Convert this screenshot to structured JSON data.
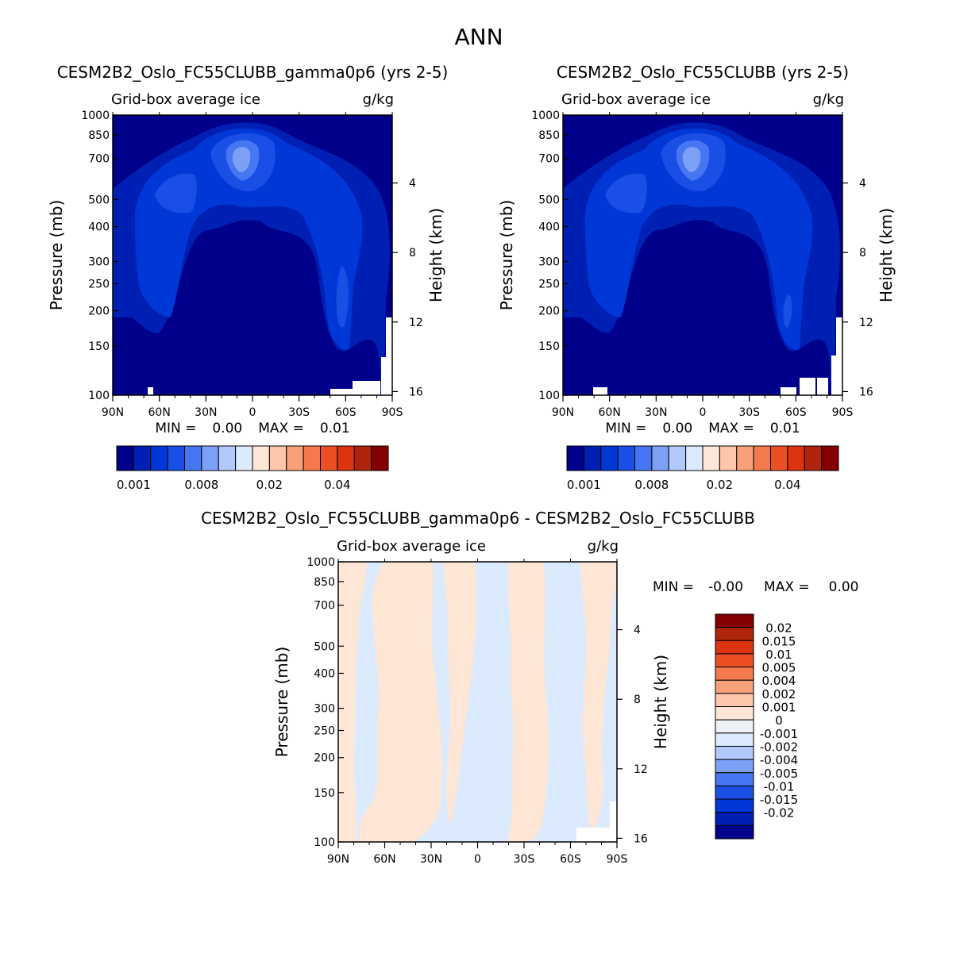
{
  "page_title": "ANN",
  "chart_data": [
    {
      "type": "heatmap",
      "title": "CESM2B2_Oslo_FC55CLUBB_gamma0p6 (yrs 2-5)",
      "subtitle_left": "Grid-box average ice",
      "subtitle_right": "g/kg",
      "xlabel": "",
      "ylabel": "Pressure (mb)",
      "ylabel_right": "Height (km)",
      "x_ticks": [
        "90N",
        "60N",
        "30N",
        "0",
        "30S",
        "60S",
        "90S"
      ],
      "y_ticks": [
        "100",
        "150",
        "200",
        "250",
        "300",
        "400",
        "500",
        "700",
        "850",
        "1000"
      ],
      "y_ticks_right": [
        "16",
        "12",
        "8",
        "4"
      ],
      "ylim": [
        1000,
        100
      ],
      "min_label": "MIN =",
      "min_value": "0.00",
      "max_label": "MAX =",
      "max_value": "0.01",
      "colorbar_labels": [
        "0.001",
        "0.008",
        "0.02",
        "0.04"
      ],
      "colors": [
        "#00008b",
        "#0020b4",
        "#0038d8",
        "#1a4fe6",
        "#4676f2",
        "#7da0f7",
        "#b3c9fb",
        "#dceafd",
        "#fde6d6",
        "#fbc6aa",
        "#f8a07a",
        "#f4794c",
        "#ec4f24",
        "#dc3411",
        "#b0240b",
        "#850000"
      ]
    },
    {
      "type": "heatmap",
      "title": "CESM2B2_Oslo_FC55CLUBB (yrs 2-5)",
      "subtitle_left": "Grid-box average ice",
      "subtitle_right": "g/kg",
      "xlabel": "",
      "ylabel": "Pressure (mb)",
      "ylabel_right": "Height (km)",
      "x_ticks": [
        "90N",
        "60N",
        "30N",
        "0",
        "30S",
        "60S",
        "90S"
      ],
      "y_ticks": [
        "100",
        "150",
        "200",
        "250",
        "300",
        "400",
        "500",
        "700",
        "850",
        "1000"
      ],
      "y_ticks_right": [
        "16",
        "12",
        "8",
        "4"
      ],
      "ylim": [
        1000,
        100
      ],
      "min_label": "MIN =",
      "min_value": "0.00",
      "max_label": "MAX =",
      "max_value": "0.01",
      "colorbar_labels": [
        "0.001",
        "0.008",
        "0.02",
        "0.04"
      ]
    },
    {
      "type": "heatmap",
      "title": "CESM2B2_Oslo_FC55CLUBB_gamma0p6 - CESM2B2_Oslo_FC55CLUBB",
      "subtitle_left": "Grid-box average ice",
      "subtitle_right": "g/kg",
      "xlabel": "",
      "ylabel": "Pressure (mb)",
      "ylabel_right": "Height (km)",
      "x_ticks": [
        "90N",
        "60N",
        "30N",
        "0",
        "30S",
        "60S",
        "90S"
      ],
      "y_ticks": [
        "100",
        "150",
        "200",
        "250",
        "300",
        "400",
        "500",
        "700",
        "850",
        "1000"
      ],
      "y_ticks_right": [
        "16",
        "12",
        "8",
        "4"
      ],
      "ylim": [
        1000,
        100
      ],
      "min_label": "MIN =",
      "min_value": "-0.00",
      "max_label": "MAX =",
      "max_value": "0.00",
      "colorbar_labels": [
        "0.02",
        "0.015",
        "0.01",
        "0.005",
        "0.004",
        "0.002",
        "0.001",
        "0",
        "-0.001",
        "-0.002",
        "-0.004",
        "-0.005",
        "-0.01",
        "-0.015",
        "-0.02"
      ],
      "colors": [
        "#850000",
        "#b0240b",
        "#dc3411",
        "#ec4f24",
        "#f4794c",
        "#f8a07a",
        "#fbc6aa",
        "#fde6d6",
        "#eef2f7",
        "#dceafd",
        "#b3c9fb",
        "#7da0f7",
        "#4676f2",
        "#1a4fe6",
        "#0038d8",
        "#0020b4",
        "#00008b"
      ]
    }
  ]
}
